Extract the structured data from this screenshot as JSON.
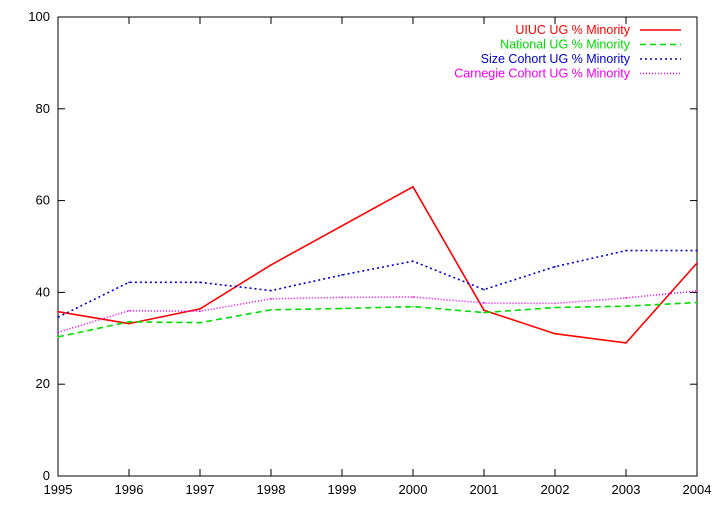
{
  "chart_data": {
    "type": "line",
    "title": "",
    "xlabel": "",
    "ylabel": "",
    "x": [
      1995,
      1996,
      1997,
      1998,
      1999,
      2000,
      2001,
      2002,
      2003,
      2004
    ],
    "xlim": [
      1995,
      2004
    ],
    "ylim": [
      0,
      100
    ],
    "xticks": [
      "1995",
      "1996",
      "1997",
      "1998",
      "1999",
      "2000",
      "2001",
      "2002",
      "2003",
      "2004"
    ],
    "yticks": [
      "0",
      "20",
      "40",
      "60",
      "80",
      "100"
    ],
    "grid": false,
    "legend_position": "top-right",
    "series": [
      {
        "name": "UIUC UG % Minority",
        "color": "#ff0000",
        "style": "solid",
        "values": [
          35.8,
          33.2,
          36.4,
          46.0,
          54.5,
          63.0,
          36.1,
          31.0,
          29.0,
          46.4
        ]
      },
      {
        "name": "National UG % Minority",
        "color": "#00dd00",
        "style": "dashed",
        "values": [
          30.3,
          33.6,
          33.4,
          36.2,
          36.5,
          36.9,
          35.6,
          36.7,
          37.0,
          37.8
        ]
      },
      {
        "name": "Size Cohort UG % Minority",
        "color": "#0000cc",
        "style": "dotted",
        "values": [
          34.6,
          42.2,
          42.2,
          40.4,
          43.8,
          46.8,
          40.6,
          45.6,
          49.1,
          49.1
        ]
      },
      {
        "name": "Carnegie Cohort UG % Minority",
        "color": "#ee00ee",
        "style": "fine-dotted",
        "values": [
          31.3,
          36.0,
          35.9,
          38.6,
          38.9,
          39.0,
          37.7,
          37.6,
          38.8,
          40.3
        ]
      }
    ]
  }
}
